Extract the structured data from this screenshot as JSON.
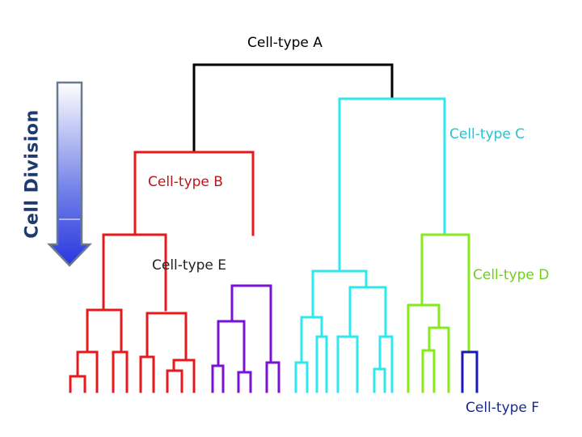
{
  "axis": {
    "title": "Cell Division",
    "title_color": "#1f3a6e",
    "arrow_colors": [
      "#ffffff",
      "#6f7fe8",
      "#2a36e0"
    ]
  },
  "labels": {
    "a": "Cell-type A",
    "b": "Cell-type B",
    "c": "Cell-type C",
    "d": "Cell-type D",
    "e": "Cell-type E",
    "f": "Cell-type F"
  },
  "colors": {
    "root": "#000000",
    "b": "#e8191d",
    "c": "#2fe8ee",
    "d": "#86ea1c",
    "e": "#7a12d6",
    "f": "#1a18b8",
    "label_a": "#000000",
    "label_b": "#c0141c",
    "label_c": "#26c2d0",
    "label_d": "#6fcf1c",
    "label_e": "#222222",
    "label_f": "#1a2a8a"
  }
}
